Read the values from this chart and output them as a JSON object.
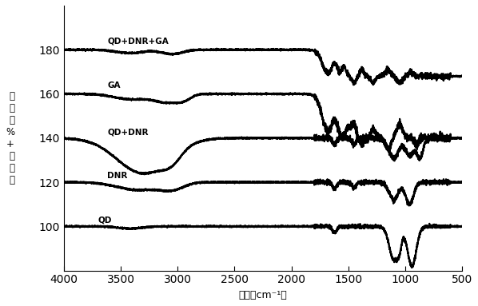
{
  "xlabel": "波数（cm⁻¹）",
  "ylabel": "透\n光\n度\n%\n+\n偏\n移\n量",
  "xlim": [
    4000,
    500
  ],
  "ylim": [
    80,
    200
  ],
  "yticks": [
    100,
    120,
    140,
    160,
    180
  ],
  "xticks": [
    4000,
    3500,
    3000,
    2500,
    2000,
    1500,
    1000,
    500
  ],
  "line_color": "#000000",
  "line_width": 1.6,
  "spectra_labels": [
    "QD",
    "DNR",
    "QD+DNR",
    "GA",
    "QD+DNR+GA"
  ],
  "bases": [
    100,
    120,
    140,
    160,
    180
  ]
}
